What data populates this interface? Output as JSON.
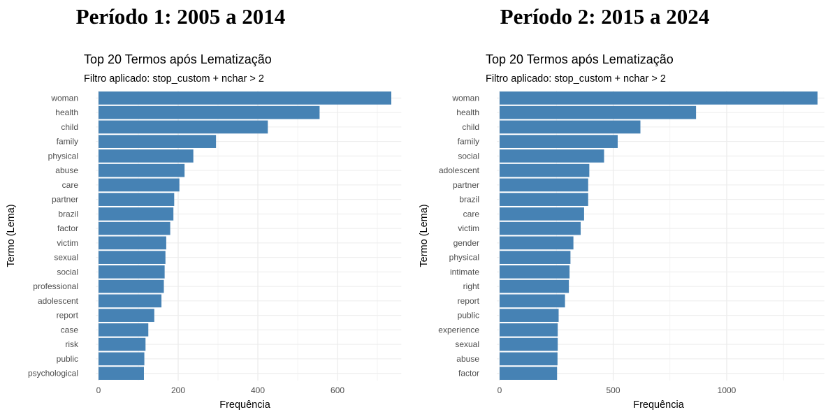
{
  "chart_data": [
    {
      "type": "bar",
      "orientation": "horizontal",
      "period_title": "Período 1: 2005 a 2014",
      "title": "Top 20 Termos após Lematização",
      "subtitle": "Filtro aplicado: stop_custom + nchar > 2",
      "xlabel": "Frequência",
      "ylabel": "Termo (Lema)",
      "xlim": [
        0,
        760
      ],
      "xticks": [
        0,
        200,
        400,
        600
      ],
      "grid": true,
      "bar_color": "#4682B4",
      "categories": [
        "woman",
        "health",
        "child",
        "family",
        "physical",
        "abuse",
        "care",
        "partner",
        "brazil",
        "factor",
        "victim",
        "sexual",
        "social",
        "professional",
        "adolescent",
        "report",
        "case",
        "risk",
        "public",
        "psychological"
      ],
      "values": [
        735,
        555,
        425,
        295,
        238,
        216,
        203,
        190,
        188,
        180,
        170,
        168,
        166,
        164,
        158,
        140,
        125,
        118,
        115,
        114
      ]
    },
    {
      "type": "bar",
      "orientation": "horizontal",
      "period_title": "Período 2: 2015 a 2024",
      "title": "Top 20 Termos após Lematização",
      "subtitle": "Filtro aplicado: stop_custom + nchar > 2",
      "xlabel": "Frequência",
      "ylabel": "Termo (Lema)",
      "xlim": [
        0,
        1430
      ],
      "xticks": [
        0,
        500,
        1000
      ],
      "grid": true,
      "bar_color": "#4682B4",
      "categories": [
        "woman",
        "health",
        "child",
        "family",
        "social",
        "adolescent",
        "partner",
        "brazil",
        "care",
        "victim",
        "gender",
        "physical",
        "intimate",
        "right",
        "report",
        "public",
        "experience",
        "sexual",
        "abuse",
        "factor"
      ],
      "values": [
        1400,
        865,
        620,
        520,
        460,
        395,
        390,
        390,
        372,
        357,
        325,
        312,
        308,
        305,
        288,
        260,
        256,
        256,
        255,
        253
      ]
    }
  ]
}
